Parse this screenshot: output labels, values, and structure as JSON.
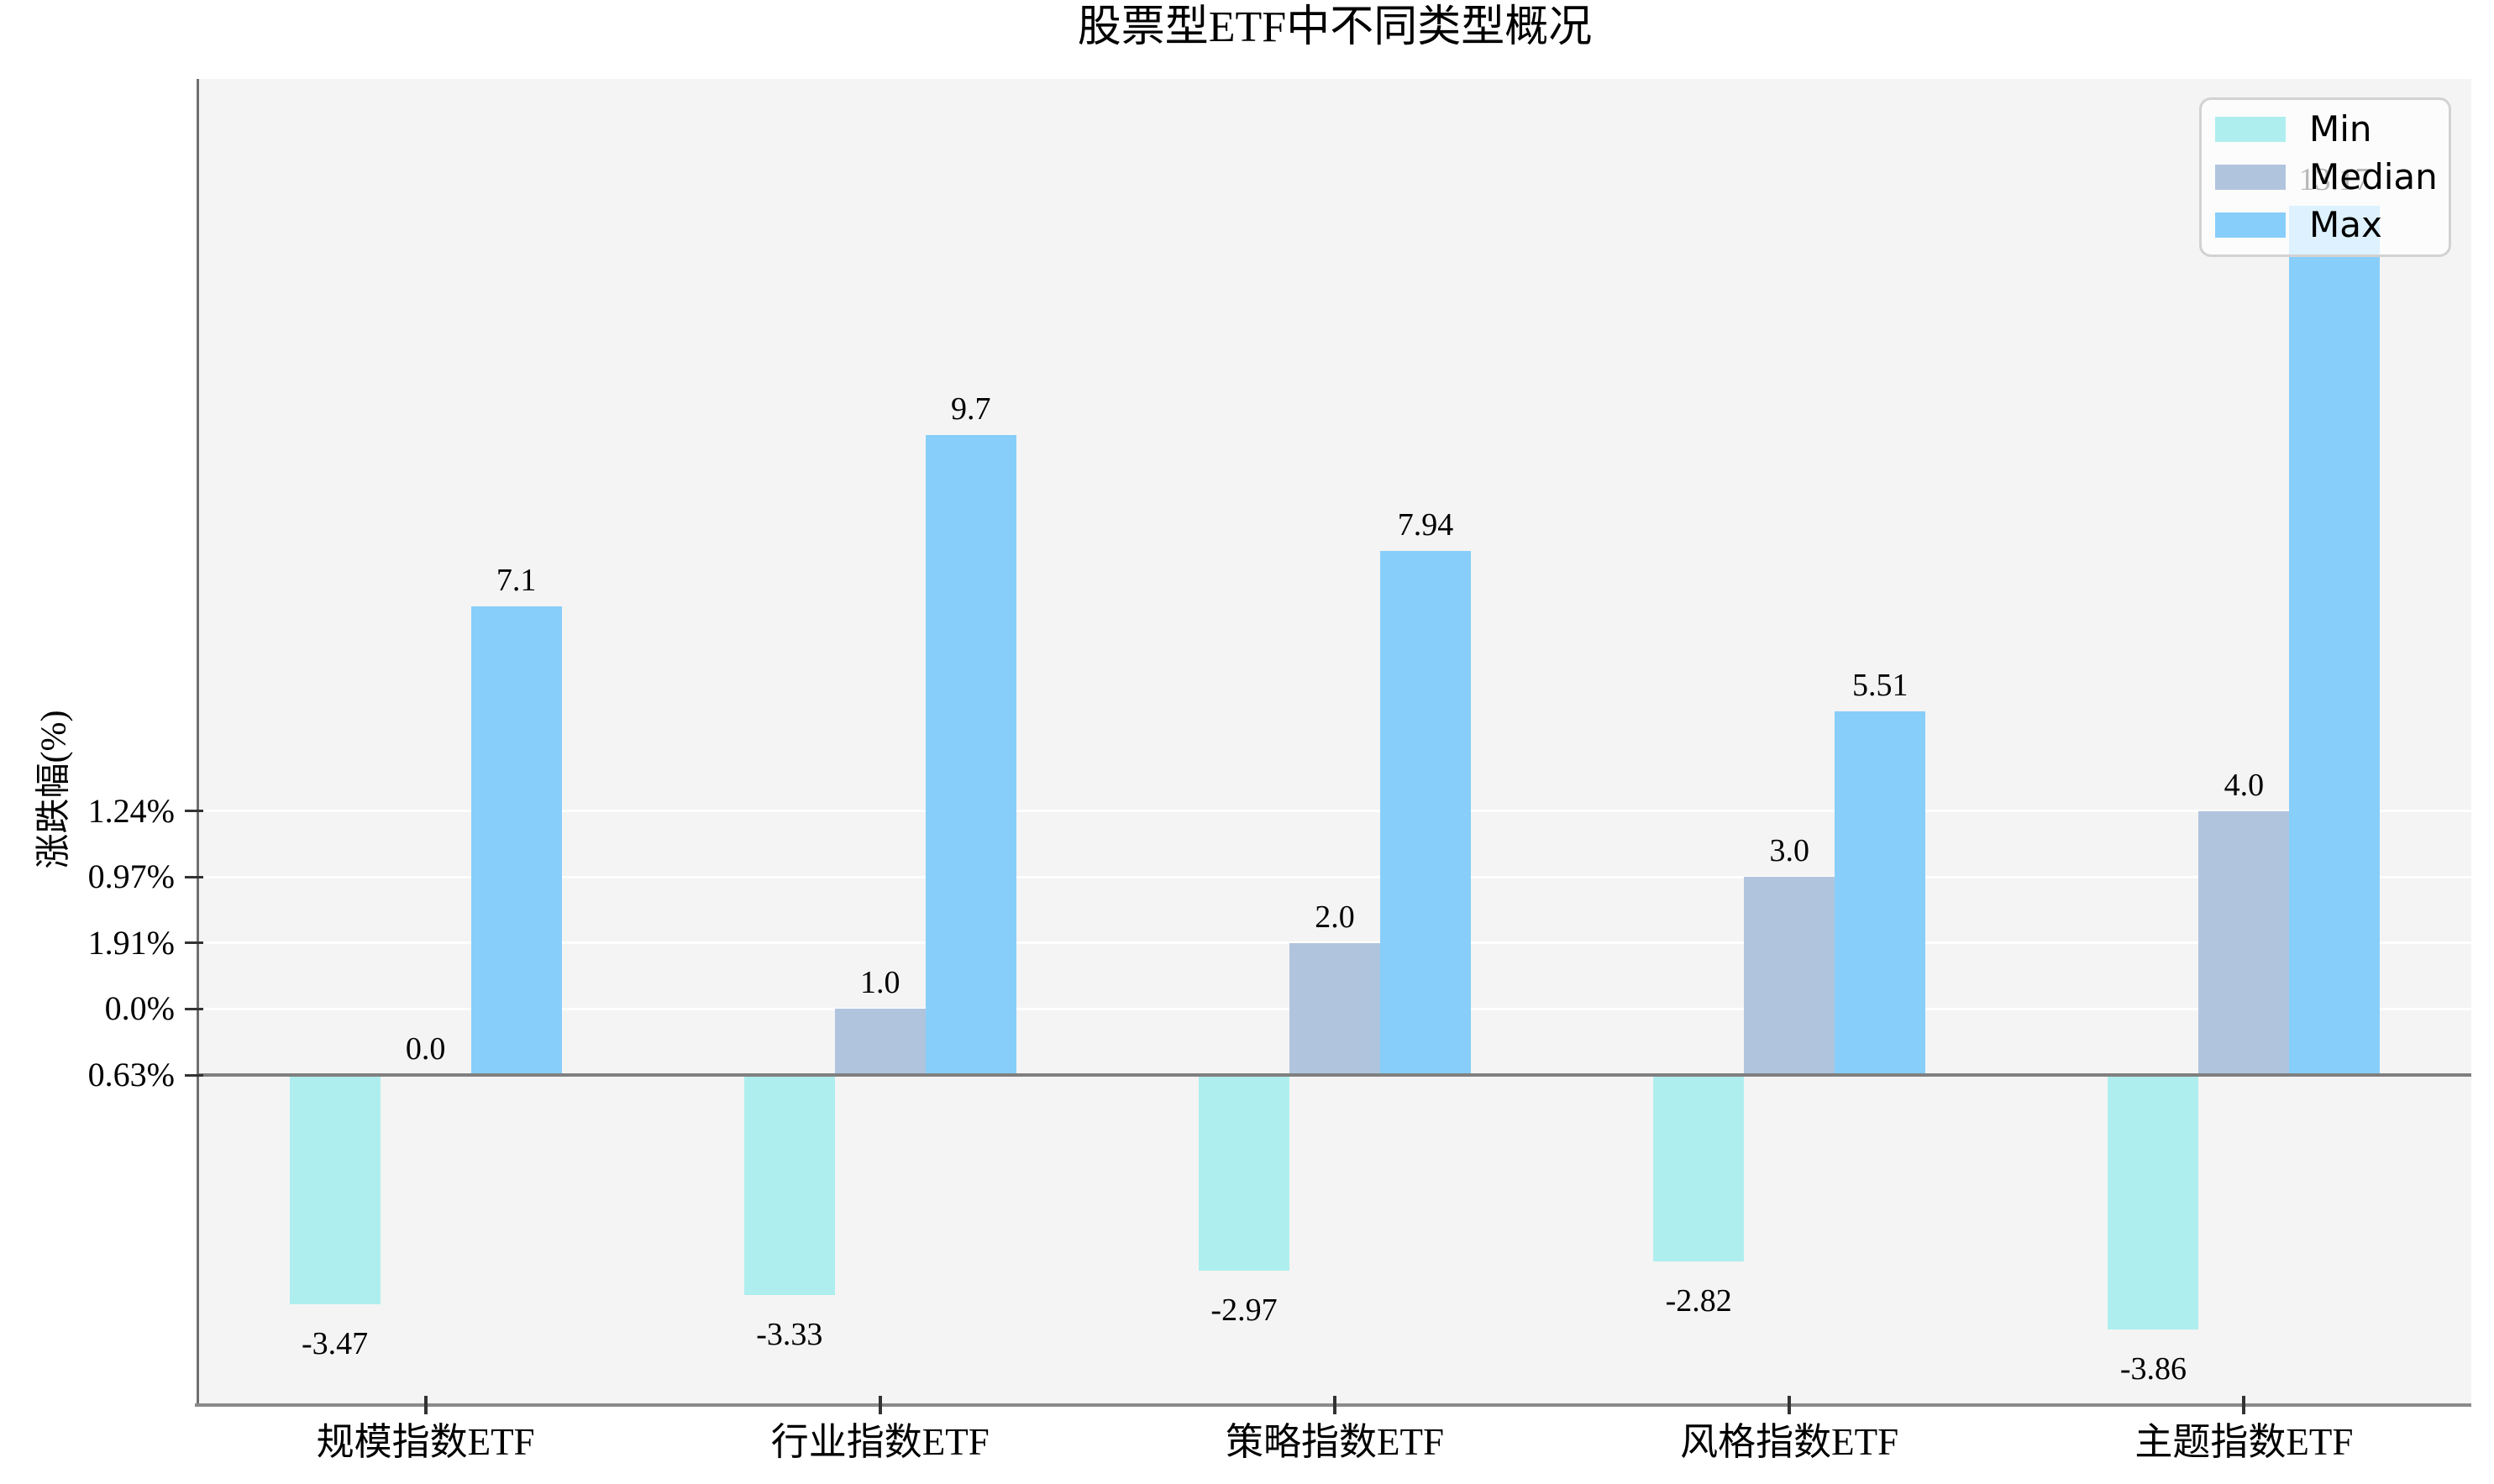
{
  "title": "股票型ETF中不同类型概况",
  "colors": {
    "figure_bg": "#ffffff",
    "plot_bg": "#f4f4f4",
    "gridline": "#ffffff",
    "spine": "#808080",
    "min_bar": "#AFEEEE",
    "median_bar": "#B0C4DE",
    "max_bar": "#87CEFA"
  },
  "legend": {
    "items": [
      {
        "label": "Min",
        "color": "#AFEEEE"
      },
      {
        "label": "Median",
        "color": "#B0C4DE"
      },
      {
        "label": "Max",
        "color": "#87CEFA"
      }
    ]
  },
  "chart_data": {
    "type": "bar",
    "title": "股票型ETF中不同类型概况",
    "xlabel": "",
    "ylabel": "涨跌幅(%)",
    "categories": [
      "规模指数ETF",
      "行业指数ETF",
      "策略指数ETF",
      "风格指数ETF",
      "主题指数ETF"
    ],
    "series": [
      {
        "name": "Min",
        "color": "#AFEEEE",
        "values": [
          -3.47,
          -3.33,
          -2.97,
          -2.82,
          -3.86
        ],
        "labels": [
          "-3.47",
          "-3.33",
          "-2.97",
          "-2.82",
          "-3.86"
        ]
      },
      {
        "name": "Median",
        "color": "#B0C4DE",
        "values": [
          0.0,
          1.0,
          2.0,
          3.0,
          4.0
        ],
        "labels": [
          "0.0",
          "1.0",
          "2.0",
          "3.0",
          "4.0"
        ]
      },
      {
        "name": "Max",
        "color": "#87CEFA",
        "values": [
          7.1,
          9.7,
          7.94,
          5.51,
          13.17
        ],
        "labels": [
          "7.1",
          "9.7",
          "7.94",
          "5.51",
          "13.17"
        ]
      }
    ],
    "y_tick_labels": [
      "1.24%",
      "0.97%",
      "1.91%",
      "0.0%",
      "0.63%"
    ],
    "baseline_value": 0,
    "grid": true,
    "legend_position": "upper right"
  }
}
